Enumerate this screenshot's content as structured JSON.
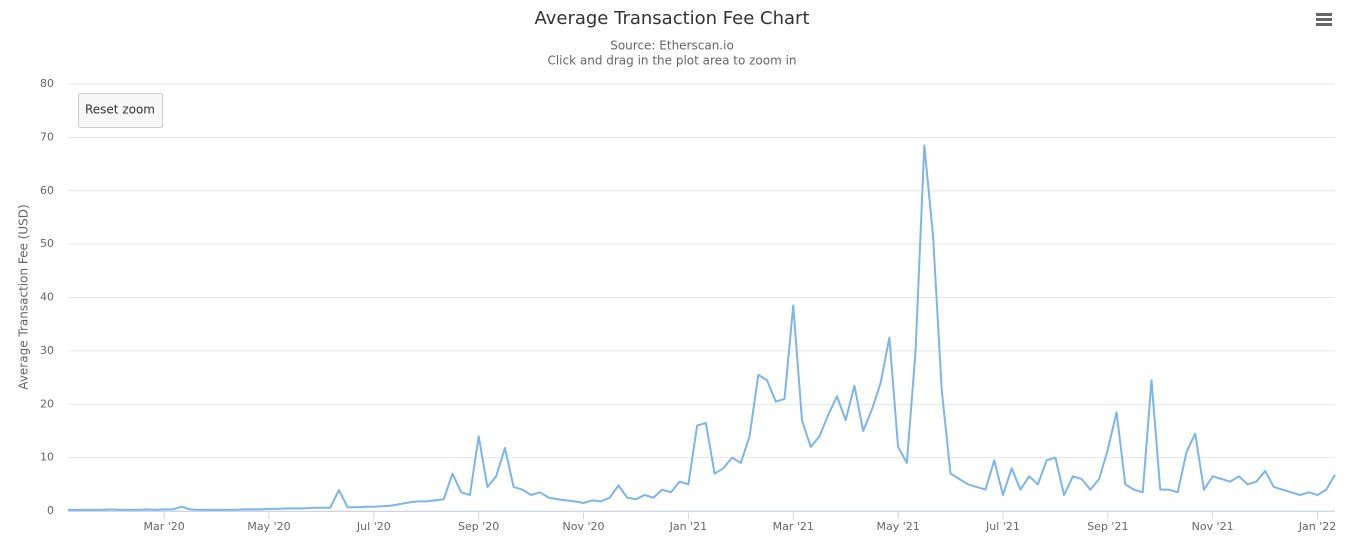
{
  "chart_data": {
    "type": "line",
    "title": "Average Transaction Fee Chart",
    "subtitle": "Source: Etherscan.io",
    "note": "Click and drag in the plot area to zoom in",
    "reset_button": "Reset zoom",
    "y_label": "Average Transaction Fee (USD)",
    "color": "#7cb5ec",
    "grid": true,
    "ylim": [
      0,
      80
    ],
    "yticks": [
      0,
      10,
      20,
      30,
      40,
      50,
      60,
      70,
      80
    ],
    "categories": [
      null,
      null,
      null,
      null,
      null,
      null,
      null,
      null,
      null,
      null,
      null,
      "Mar '20",
      null,
      null,
      null,
      null,
      null,
      null,
      null,
      null,
      null,
      null,
      null,
      "May '20",
      null,
      null,
      null,
      null,
      null,
      null,
      null,
      null,
      null,
      null,
      null,
      "Jul '20",
      null,
      null,
      null,
      null,
      null,
      null,
      null,
      null,
      null,
      null,
      null,
      "Sep '20",
      null,
      null,
      null,
      null,
      null,
      null,
      null,
      null,
      null,
      null,
      null,
      "Nov '20",
      null,
      null,
      null,
      null,
      null,
      null,
      null,
      null,
      null,
      null,
      null,
      "Jan '21",
      null,
      null,
      null,
      null,
      null,
      null,
      null,
      null,
      null,
      null,
      null,
      "Mar '21",
      null,
      null,
      null,
      null,
      null,
      null,
      null,
      null,
      null,
      null,
      null,
      "May '21",
      null,
      null,
      null,
      null,
      null,
      null,
      null,
      null,
      null,
      null,
      null,
      "Jul '21",
      null,
      null,
      null,
      null,
      null,
      null,
      null,
      null,
      null,
      null,
      null,
      "Sep '21",
      null,
      null,
      null,
      null,
      null,
      null,
      null,
      null,
      null,
      null,
      null,
      "Nov '21",
      null,
      null,
      null,
      null,
      null,
      null,
      null,
      null,
      null,
      null,
      null,
      "Jan '22",
      null,
      null
    ],
    "values": [
      0.2,
      0.2,
      0.2,
      0.2,
      0.2,
      0.3,
      0.2,
      0.2,
      0.2,
      0.3,
      0.2,
      0.3,
      0.3,
      0.8,
      0.3,
      0.2,
      0.2,
      0.2,
      0.2,
      0.2,
      0.3,
      0.3,
      0.3,
      0.4,
      0.4,
      0.5,
      0.5,
      0.5,
      0.6,
      0.6,
      0.6,
      3.9,
      0.7,
      0.7,
      0.8,
      0.8,
      0.9,
      1.0,
      1.3,
      1.6,
      1.8,
      1.8,
      2.0,
      2.2,
      7.0,
      3.5,
      3.0,
      14.0,
      4.5,
      6.5,
      11.8,
      4.5,
      4.0,
      3.0,
      3.5,
      2.5,
      2.2,
      2.0,
      1.8,
      1.5,
      2.0,
      1.8,
      2.5,
      4.8,
      2.5,
      2.2,
      3.0,
      2.5,
      4.0,
      3.5,
      5.5,
      5.0,
      16.0,
      16.5,
      7.0,
      8.0,
      10.0,
      9.0,
      14.0,
      25.5,
      24.5,
      20.5,
      21.0,
      38.5,
      17.0,
      12.0,
      14.0,
      18.0,
      21.5,
      17.0,
      23.5,
      15.0,
      19.0,
      24.0,
      32.5,
      12.0,
      9.0,
      30.0,
      68.5,
      51.5,
      22.5,
      7.0,
      6.0,
      5.0,
      4.5,
      4.0,
      9.5,
      3.0,
      8.0,
      4.0,
      6.5,
      5.0,
      9.5,
      10.0,
      3.0,
      6.5,
      6.0,
      4.0,
      6.0,
      11.5,
      18.5,
      5.0,
      4.0,
      3.5,
      24.5,
      4.0,
      4.0,
      3.5,
      11.0,
      14.5,
      4.0,
      6.5,
      6.0,
      5.5,
      6.5,
      5.0,
      5.5,
      7.5,
      4.5,
      4.0,
      3.5,
      3.0,
      3.5,
      3.0,
      4.0,
      6.8
    ]
  }
}
